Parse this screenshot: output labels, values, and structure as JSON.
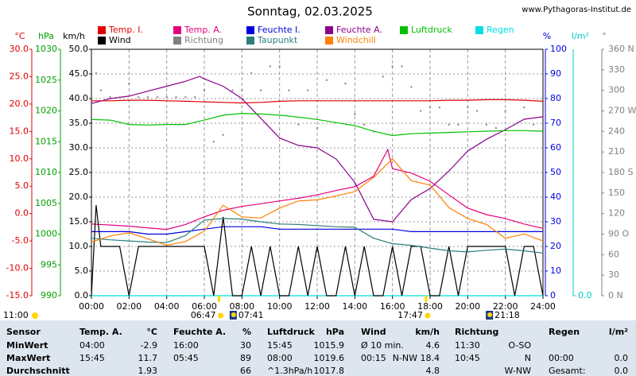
{
  "title": "Sonntag, 02.03.2025",
  "website": "www.Pythagoras-Institut.de",
  "chart_data": {
    "type": "line",
    "ylabel": "°C",
    "ylim": [
      -15,
      30
    ],
    "yticks": [
      {
        "value": -15,
        "label": "-15.0"
      },
      {
        "value": -10,
        "label": "-10.0"
      },
      {
        "value": -5,
        "label": "-5.0"
      },
      {
        "value": 0,
        "label": "0.0"
      },
      {
        "value": 5,
        "label": "5.0"
      },
      {
        "value": 10,
        "label": "10.0"
      },
      {
        "value": 15,
        "label": "15.0"
      },
      {
        "value": 20,
        "label": "20.0"
      },
      {
        "value": 25,
        "label": "25.0"
      },
      {
        "value": 30,
        "label": "30.0"
      }
    ],
    "y2label": "hPa",
    "y2lim": [
      990,
      1030
    ],
    "y2ticks": [
      990,
      995,
      1000,
      1005,
      1010,
      1015,
      1020,
      1025,
      1030
    ],
    "y3label": "km/h",
    "y3lim": [
      0,
      50
    ],
    "y3ticks": [
      {
        "value": 0,
        "label": "0.0"
      },
      {
        "value": 5,
        "label": "5.0"
      },
      {
        "value": 10,
        "label": "10.0"
      },
      {
        "value": 15,
        "label": "15.0"
      },
      {
        "value": 20,
        "label": "20.0"
      },
      {
        "value": 25,
        "label": "25.0"
      },
      {
        "value": 30,
        "label": "30.0"
      },
      {
        "value": 35,
        "label": "35.0"
      },
      {
        "value": 40,
        "label": "40.0"
      },
      {
        "value": 45,
        "label": "45.0"
      },
      {
        "value": 50,
        "label": "50.0"
      }
    ],
    "y4label": "%",
    "y4lim": [
      0,
      100
    ],
    "y4ticks": [
      0,
      10,
      20,
      30,
      40,
      50,
      60,
      70,
      80,
      90,
      100
    ],
    "y5label": "l/m²",
    "y5lim": [
      0,
      10
    ],
    "y5ticks": [
      {
        "value": 0,
        "label": "0.0"
      }
    ],
    "y6label": "°",
    "y6lim": [
      0,
      360
    ],
    "y6ticks": [
      {
        "value": 0,
        "label": "0 N"
      },
      30,
      60,
      {
        "value": 90,
        "label": "90 O"
      },
      120,
      150,
      {
        "value": 180,
        "label": "180 S"
      },
      210,
      240,
      {
        "value": 270,
        "label": "270 W"
      },
      300,
      330,
      {
        "value": 360,
        "label": "360 N"
      }
    ],
    "xlim": [
      0,
      24
    ],
    "xticks": [
      {
        "value": 0,
        "label": "00:00"
      },
      {
        "value": 2,
        "label": "02:00"
      },
      {
        "value": 4,
        "label": "04:00"
      },
      {
        "value": 6,
        "label": "06:00"
      },
      {
        "value": 8,
        "label": "08:00"
      },
      {
        "value": 10,
        "label": "10:00"
      },
      {
        "value": 12,
        "label": "12:00"
      },
      {
        "value": 14,
        "label": "14:00"
      },
      {
        "value": 16,
        "label": "16:00"
      },
      {
        "value": 18,
        "label": "18:00"
      },
      {
        "value": 20,
        "label": "20:00"
      },
      {
        "value": 22,
        "label": "22:00"
      },
      {
        "value": 24,
        "label": "24:00"
      }
    ],
    "grid": true,
    "daylight": "11:00",
    "sun_events": [
      {
        "x": 6.783,
        "label": "06:47"
      },
      {
        "x": 17.783,
        "label": "17:47"
      }
    ],
    "moon_events": [
      {
        "x": 7.683,
        "label": "07:41"
      },
      {
        "x": 21.3,
        "label": "21:18"
      }
    ],
    "series": [
      {
        "name": "Temp. I.",
        "color": "#e00000",
        "axis": "y",
        "x": [
          0,
          1,
          2,
          3,
          4,
          5,
          6,
          7,
          8,
          9,
          10,
          11,
          12,
          13,
          14,
          15,
          16,
          17,
          18,
          19,
          20,
          21,
          22,
          23,
          24
        ],
        "values": [
          20.6,
          20.6,
          20.7,
          20.7,
          20.6,
          20.5,
          20.4,
          20.3,
          20.2,
          20.3,
          20.5,
          20.6,
          20.6,
          20.6,
          20.6,
          20.6,
          20.6,
          20.6,
          20.6,
          20.7,
          20.7,
          20.8,
          20.8,
          20.7,
          20.5
        ]
      },
      {
        "name": "Temp. A.",
        "color": "#e6007e",
        "axis": "y",
        "x": [
          0,
          1,
          2,
          3,
          4,
          5,
          6,
          7,
          8,
          9,
          10,
          11,
          12,
          13,
          14,
          15,
          15.75,
          16,
          17,
          18,
          19,
          20,
          21,
          22,
          23,
          24
        ],
        "values": [
          -1.9,
          -2.1,
          -2.3,
          -2.6,
          -2.9,
          -2.0,
          -0.6,
          0.6,
          1.3,
          1.8,
          2.3,
          2.8,
          3.4,
          4.2,
          4.9,
          6.8,
          11.7,
          8.2,
          7.4,
          5.9,
          3.4,
          1.0,
          -0.2,
          -0.9,
          -1.9,
          -2.7
        ]
      },
      {
        "name": "Feuchte I.",
        "color": "#0000e0",
        "axis": "y4",
        "x": [
          0,
          1,
          2,
          3,
          4,
          5,
          6,
          7,
          8,
          9,
          10,
          11,
          12,
          13,
          14,
          15,
          16,
          17,
          18,
          19,
          20,
          21,
          22,
          23,
          24
        ],
        "values": [
          26,
          26,
          26,
          25,
          25,
          26,
          27,
          28,
          28,
          28,
          27,
          27,
          27,
          27,
          27,
          27,
          27,
          26,
          26,
          26,
          26,
          26,
          26,
          26,
          26
        ]
      },
      {
        "name": "Feuchte A.",
        "color": "#8b008b",
        "axis": "y4",
        "x": [
          0,
          1,
          2,
          3,
          4,
          5,
          5.75,
          6,
          7,
          8,
          9,
          10,
          11,
          12,
          13,
          14,
          15,
          16,
          17,
          18,
          19,
          20,
          21,
          22,
          23,
          24
        ],
        "values": [
          78,
          80,
          81,
          83,
          85,
          87,
          89,
          88,
          85,
          80,
          72,
          64,
          61,
          60,
          55.5,
          46,
          31,
          30,
          39,
          43.5,
          50.6,
          58.7,
          63.5,
          67.4,
          71.6,
          72.6
        ]
      },
      {
        "name": "Luftdruck",
        "color": "#00c000",
        "axis": "y2",
        "x": [
          0,
          1,
          2,
          3,
          4,
          5,
          6,
          7,
          8,
          9,
          10,
          11,
          12,
          13,
          14,
          15,
          16,
          17,
          18,
          19,
          20,
          21,
          22,
          23,
          24
        ],
        "values": [
          1018.6,
          1018.5,
          1017.8,
          1017.7,
          1017.8,
          1017.8,
          1018.5,
          1019.3,
          1019.6,
          1019.5,
          1019.3,
          1019.0,
          1018.6,
          1018.1,
          1017.6,
          1016.7,
          1016.0,
          1016.3,
          1016.4,
          1016.5,
          1016.6,
          1016.7,
          1016.8,
          1016.8,
          1016.7
        ]
      },
      {
        "name": "Regen",
        "color": "#00e0e0",
        "axis": "y5",
        "x": [
          0,
          24
        ],
        "values": [
          0,
          0
        ]
      },
      {
        "name": "Wind",
        "color": "#000000",
        "axis": "y3",
        "x": [
          0,
          0.25,
          0.5,
          1,
          1.5,
          2,
          2.5,
          3,
          3.5,
          4,
          4.5,
          5,
          5.5,
          6,
          6.5,
          7,
          7.5,
          8,
          8.5,
          9,
          9.5,
          10,
          10.5,
          11,
          11.5,
          12,
          12.5,
          13,
          13.5,
          14,
          14.5,
          15,
          15.5,
          16,
          16.5,
          17,
          17.5,
          18,
          18.5,
          19,
          19.5,
          20,
          20.5,
          21,
          21.5,
          22,
          22.5,
          23,
          23.5,
          24
        ],
        "values": [
          0,
          18.4,
          10,
          10,
          10,
          0,
          10,
          10,
          10,
          10,
          10,
          10,
          10,
          10,
          0,
          16,
          0,
          0,
          10,
          0,
          10,
          0,
          0,
          10,
          0,
          10,
          0,
          0,
          10,
          0,
          10,
          0,
          0,
          10,
          0,
          10,
          10,
          0,
          0,
          10,
          0,
          10,
          10,
          10,
          10,
          10,
          0,
          10,
          10,
          0
        ]
      },
      {
        "name": "Richtung",
        "color": "#808080",
        "axis": "y6",
        "style": "dots",
        "x": [
          0.25,
          0.5,
          1,
          1.5,
          2,
          2.5,
          3,
          3.5,
          4,
          4.5,
          5,
          5.5,
          6,
          6.5,
          7,
          7.5,
          8,
          8.5,
          9,
          9.5,
          10,
          10.5,
          11,
          11.5,
          12,
          12.5,
          13,
          13.5,
          14,
          14.5,
          15,
          15.5,
          16,
          16.5,
          17,
          17.5,
          18,
          18.5,
          19,
          19.5,
          20,
          20.5,
          21,
          21.5,
          22,
          22.5,
          23,
          23.5
        ],
        "values": [
          325,
          300,
          290,
          290,
          310,
          290,
          290,
          290,
          290,
          290,
          290,
          290,
          300,
          225,
          235,
          300,
          300,
          325,
          300,
          335,
          335,
          300,
          250,
          300,
          245,
          315,
          285,
          310,
          265,
          250,
          240,
          320,
          335,
          335,
          305,
          270,
          275,
          275,
          250,
          250,
          275,
          270,
          250,
          245,
          270,
          250,
          275,
          250
        ]
      },
      {
        "name": "Taupunkt",
        "color": "#2e7d7d",
        "axis": "y",
        "x": [
          0,
          1,
          2,
          3,
          4,
          5,
          6,
          7,
          8,
          9,
          10,
          11,
          12,
          13,
          14,
          15,
          16,
          17,
          18,
          19,
          20,
          21,
          22,
          23,
          24
        ],
        "values": [
          -4.5,
          -4.8,
          -5.0,
          -5.2,
          -5.3,
          -4.0,
          -1.2,
          -0.9,
          -1.0,
          -1.5,
          -1.9,
          -2.0,
          -2.2,
          -2.4,
          -2.5,
          -4.5,
          -5.5,
          -5.8,
          -6.3,
          -6.8,
          -7.0,
          -6.7,
          -6.5,
          -6.8,
          -7.2
        ]
      },
      {
        "name": "Windchill",
        "color": "#ff8000",
        "axis": "y",
        "x": [
          0,
          1,
          2,
          3,
          4,
          5,
          6,
          7,
          8,
          9,
          10,
          11,
          12,
          13,
          14,
          15,
          16,
          17,
          18,
          19,
          20,
          21,
          22,
          23,
          24
        ],
        "values": [
          -5.2,
          -4.1,
          -3.5,
          -4.6,
          -5.8,
          -5.1,
          -3.2,
          1.5,
          -0.6,
          -0.8,
          1.0,
          2.3,
          2.5,
          3.2,
          4.0,
          6.6,
          10.0,
          6.0,
          5.2,
          1.1,
          -0.9,
          -2.0,
          -4.5,
          -3.7,
          -5.0
        ]
      }
    ]
  },
  "table": {
    "header": [
      "Sensor",
      "Temp. A.",
      "°C",
      "Feuchte A.",
      "%",
      "Luftdruck",
      "hPa",
      "Wind",
      "km/h",
      "Richtung",
      null,
      "Regen",
      "l/m²"
    ],
    "rows": [
      [
        "MinWert",
        "04:00",
        "-2.9",
        "16:00",
        "30",
        "15:45",
        "1015.9",
        "Ø 10 min.",
        "4.6",
        "11:30",
        "O-SO",
        null,
        null
      ],
      [
        "MaxWert",
        "15:45",
        "11.7",
        "05:45",
        "89",
        "08:00",
        "1019.6",
        "00:15",
        "N-NW 18.4",
        "10:45",
        "N",
        "00:00",
        "0.0"
      ],
      [
        "Durchschnitt",
        null,
        "1.93",
        null,
        "66",
        "^1.3hPa/h",
        "1017.8",
        null,
        "4.8",
        null,
        "W-NW",
        "Gesamt:",
        "0.0"
      ]
    ]
  }
}
